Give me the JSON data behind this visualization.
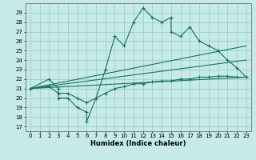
{
  "xlabel": "Humidex (Indice chaleur)",
  "background_color": "#c5eae8",
  "grid_color": "#9dcece",
  "line_color": "#1a7060",
  "xlim": [
    -0.5,
    23.5
  ],
  "ylim": [
    16.5,
    30.0
  ],
  "xticks": [
    0,
    1,
    2,
    3,
    4,
    5,
    6,
    7,
    8,
    9,
    10,
    11,
    12,
    13,
    14,
    15,
    16,
    17,
    18,
    19,
    20,
    21,
    22,
    23
  ],
  "yticks": [
    17,
    18,
    19,
    20,
    21,
    22,
    23,
    24,
    25,
    26,
    27,
    28,
    29
  ],
  "main_x": [
    0,
    2,
    3,
    3,
    4,
    5,
    6,
    6,
    7,
    8,
    9,
    10,
    11,
    12,
    13,
    14,
    15,
    15,
    16,
    17,
    18,
    19,
    20,
    21,
    22,
    23
  ],
  "main_y": [
    21,
    22,
    21,
    20,
    20,
    19,
    18.5,
    17.5,
    20,
    23,
    26.5,
    25.5,
    28,
    29.5,
    28.5,
    28,
    28.5,
    27,
    26.5,
    27.5,
    26,
    25.5,
    25,
    24,
    23.2,
    22.2
  ],
  "line2_x": [
    0,
    23
  ],
  "line2_y": [
    21,
    25.5
  ],
  "line3_x": [
    0,
    23
  ],
  "line3_y": [
    21,
    24
  ],
  "line4_x": [
    0,
    23
  ],
  "line4_y": [
    21,
    22.2
  ],
  "lower_x": [
    0,
    2,
    3,
    4,
    5,
    6,
    7,
    8,
    9,
    10,
    11,
    12,
    13,
    14,
    15,
    16,
    17,
    18,
    19,
    20,
    21,
    22,
    23
  ],
  "lower_y": [
    21,
    21.2,
    20.5,
    20.5,
    20,
    19.5,
    20,
    20.5,
    21,
    21.2,
    21.5,
    21.5,
    21.7,
    21.8,
    21.8,
    22,
    22,
    22.2,
    22.2,
    22.3,
    22.3,
    22.2,
    22.2
  ]
}
